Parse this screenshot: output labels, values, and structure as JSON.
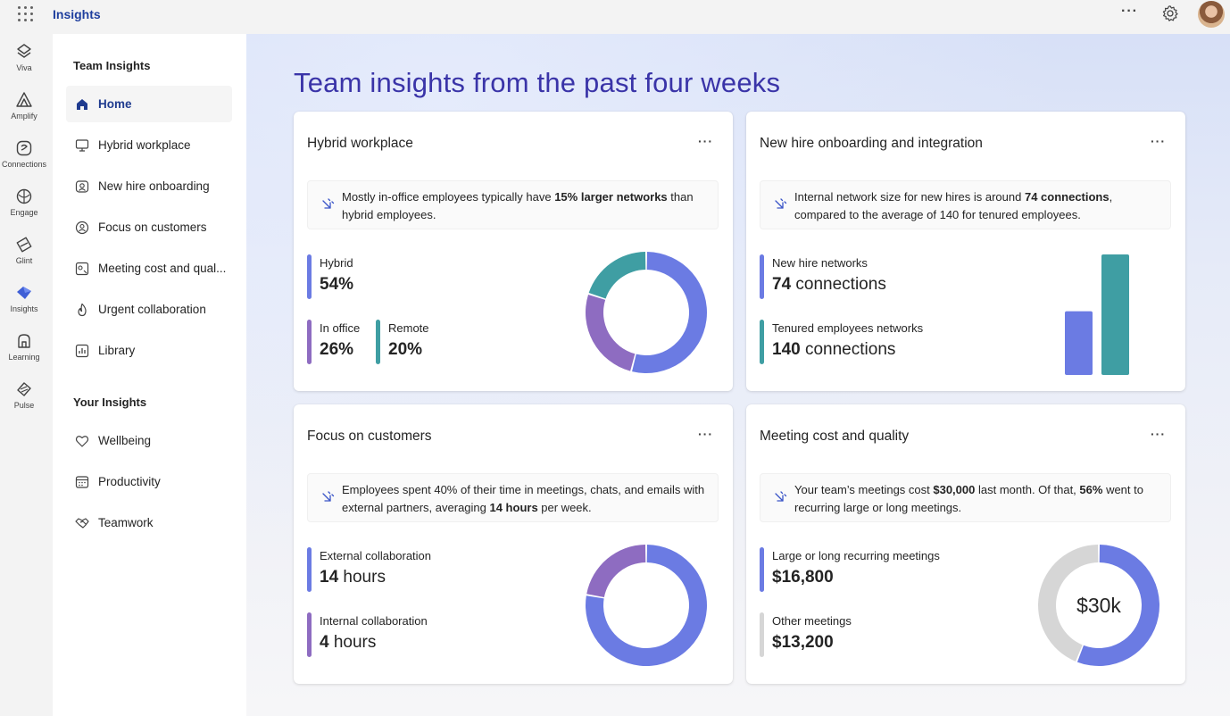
{
  "app": {
    "title": "Insights"
  },
  "topbar": {
    "more_label": "···"
  },
  "rail": [
    {
      "label": "Viva",
      "icon": "viva-icon"
    },
    {
      "label": "Amplify",
      "icon": "amplify-icon"
    },
    {
      "label": "Connections",
      "icon": "connections-icon"
    },
    {
      "label": "Engage",
      "icon": "engage-icon"
    },
    {
      "label": "Glint",
      "icon": "glint-icon"
    },
    {
      "label": "Insights",
      "icon": "insights-icon"
    },
    {
      "label": "Learning",
      "icon": "learning-icon"
    },
    {
      "label": "Pulse",
      "icon": "pulse-icon"
    }
  ],
  "nav": {
    "team_heading": "Team Insights",
    "team_items": [
      {
        "label": "Home",
        "icon": "home-icon",
        "active": true
      },
      {
        "label": "Hybrid workplace",
        "icon": "monitor-icon"
      },
      {
        "label": "New hire onboarding",
        "icon": "onboarding-icon"
      },
      {
        "label": "Focus on customers",
        "icon": "customers-icon"
      },
      {
        "label": "Meeting cost and qual...",
        "icon": "meeting-icon"
      },
      {
        "label": "Urgent collaboration",
        "icon": "flame-icon"
      },
      {
        "label": "Library",
        "icon": "library-icon"
      }
    ],
    "your_heading": "Your Insights",
    "your_items": [
      {
        "label": "Wellbeing",
        "icon": "heart-icon"
      },
      {
        "label": "Productivity",
        "icon": "calendar-icon"
      },
      {
        "label": "Teamwork",
        "icon": "handshake-icon"
      }
    ]
  },
  "main": {
    "title": "Team insights from the past four weeks",
    "cards": {
      "hybrid": {
        "title": "Hybrid workplace",
        "more": "···",
        "insight_pre": "Mostly in-office employees typically have ",
        "insight_bold": "15% larger networks",
        "insight_post": " than hybrid employees.",
        "metrics": [
          {
            "label": "Hybrid",
            "value": "54%"
          },
          {
            "label": "In office",
            "value": "26%"
          },
          {
            "label": "Remote",
            "value": "20%"
          }
        ]
      },
      "newhire": {
        "title": "New hire onboarding and integration",
        "more": "···",
        "insight_pre": "Internal network size for new hires is around ",
        "insight_bold": "74 connections",
        "insight_post": ", compared to the average of 140 for tenured employees.",
        "metrics": [
          {
            "label": "New hire networks",
            "value_num": "74",
            "value_unit": " connections"
          },
          {
            "label": "Tenured employees networks",
            "value_num": "140",
            "value_unit": " connections"
          }
        ]
      },
      "customers": {
        "title": "Focus on customers",
        "more": "···",
        "insight_pre": "Employees spent 40% of their time in meetings, chats, and emails with external partners, averaging ",
        "insight_bold": "14 hours",
        "insight_post": " per week.",
        "metrics": [
          {
            "label": "External collaboration",
            "value_num": "14",
            "value_unit": " hours"
          },
          {
            "label": "Internal collaboration",
            "value_num": "4",
            "value_unit": " hours"
          }
        ]
      },
      "meetings": {
        "title": "Meeting cost and quality",
        "more": "···",
        "insight_pre": "Your team’s meetings cost ",
        "insight_bold": "$30,000",
        "insight_mid": " last month. Of that, ",
        "insight_bold2": "56%",
        "insight_post": " went to recurring large or long meetings.",
        "metrics": [
          {
            "label": "Large or long recurring meetings",
            "value": "$16,800"
          },
          {
            "label": "Other meetings",
            "value": "$13,200"
          }
        ],
        "center_label": "$30k"
      }
    }
  },
  "colors": {
    "blue": "#6b7be3",
    "purple": "#8e6cc1",
    "teal": "#3f9ea3",
    "gray": "#d6d6d6"
  },
  "chart_data": [
    {
      "type": "pie",
      "name": "hybrid-donut",
      "labels": [
        "Hybrid",
        "In office",
        "Remote"
      ],
      "values": [
        54,
        26,
        20
      ]
    },
    {
      "type": "bar",
      "name": "network-bars",
      "categories": [
        "New hire networks",
        "Tenured employees networks"
      ],
      "values": [
        74,
        140
      ]
    },
    {
      "type": "pie",
      "name": "collaboration-donut",
      "labels": [
        "External collaboration",
        "Internal collaboration"
      ],
      "values": [
        14,
        4
      ]
    },
    {
      "type": "pie",
      "name": "meeting-cost-donut",
      "labels": [
        "Large or long recurring meetings",
        "Other meetings"
      ],
      "values": [
        16800,
        13200
      ]
    }
  ]
}
